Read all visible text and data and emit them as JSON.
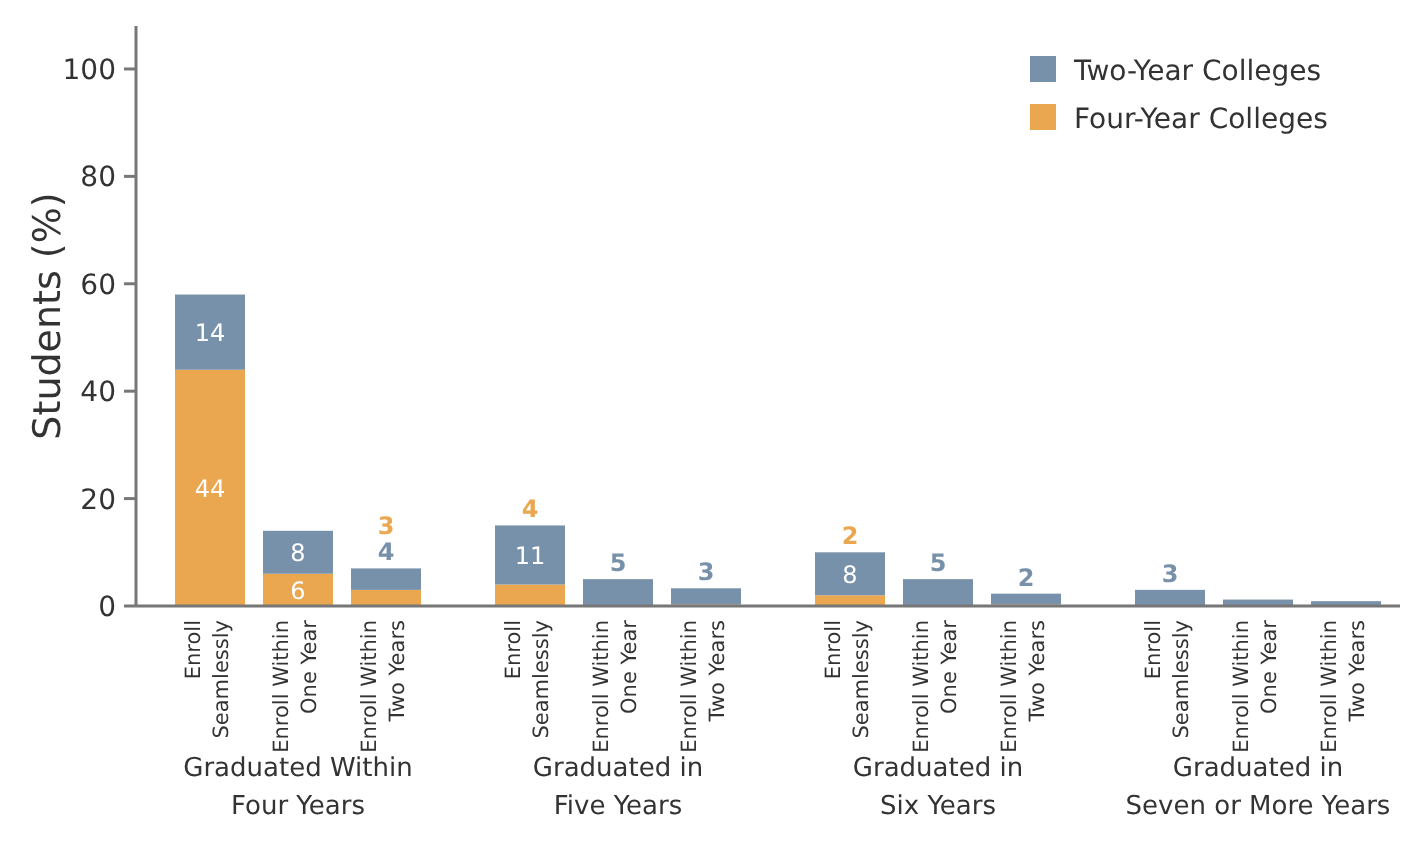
{
  "chart_data": {
    "type": "bar",
    "stacked": true,
    "ylabel": "Students (%)",
    "categories": [
      "Enroll\nSeamlessly",
      "Enroll Within\nOne Year",
      "Enroll Within\nTwo Years",
      "Enroll\nSeamlessly",
      "Enroll Within\nOne Year",
      "Enroll Within\nTwo Years",
      "Enroll\nSeamlessly",
      "Enroll Within\nOne Year",
      "Enroll Within\nTwo Years",
      "Enroll\nSeamlessly",
      "Enroll Within\nOne Year",
      "Enroll Within\nTwo Years"
    ],
    "series": [
      {
        "name": "Four-Year Colleges",
        "color": "#eba74f",
        "values": [
          44,
          6,
          3,
          4,
          null,
          0.3,
          2,
          0,
          0.3,
          0,
          0,
          0
        ],
        "value_labels": [
          "44",
          "6",
          "3",
          "4",
          null,
          null,
          "2",
          null,
          null,
          null,
          null,
          null
        ]
      },
      {
        "name": "Two-Year Colleges",
        "color": "#7891aa",
        "values": [
          14,
          8,
          4,
          11,
          5,
          3,
          8,
          5,
          2,
          3,
          1.2,
          0.9
        ],
        "value_labels": [
          "14",
          "8",
          "4",
          "11",
          "5",
          "3",
          "8",
          "5",
          "2",
          "3",
          null,
          null
        ]
      }
    ],
    "annotations": [
      "Graduated Within\nFour Years",
      "Graduated in\nFive Years",
      "Graduated in\nSix Years",
      "Graduated in\nSeven or More Years"
    ],
    "ylim": [
      0,
      108
    ],
    "yticks": [
      0,
      20,
      40,
      60,
      80,
      100
    ],
    "legend": "top right"
  }
}
